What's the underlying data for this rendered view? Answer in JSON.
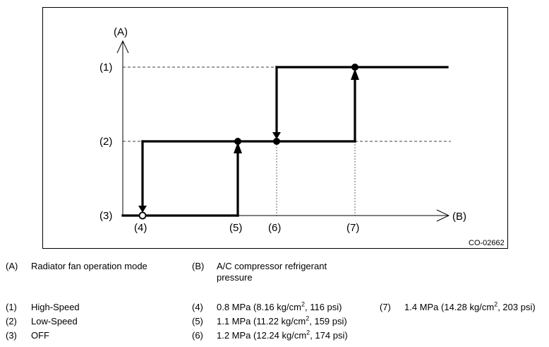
{
  "diagram": {
    "axis_y_label": "(A)",
    "axis_x_label": "(B)",
    "y_levels": [
      "(1)",
      "(2)",
      "(3)"
    ],
    "x_points": [
      "(4)",
      "(5)",
      "(6)",
      "(7)"
    ],
    "figure_code": "CO-02662"
  },
  "legend": {
    "A": {
      "key": "(A)",
      "text": "Radiator fan operation mode"
    },
    "B": {
      "key": "(B)",
      "text": "A/C compressor refrigerant pressure"
    },
    "items": [
      {
        "key": "(1)",
        "text": "High-Speed"
      },
      {
        "key": "(2)",
        "text": "Low-Speed"
      },
      {
        "key": "(3)",
        "text": "OFF"
      },
      {
        "key": "(4)",
        "text_before": "0.8 MPa (8.16 kg/cm",
        "sup": "2",
        "text_after": ", 116 psi)"
      },
      {
        "key": "(5)",
        "text_before": "1.1 MPa (11.22 kg/cm",
        "sup": "2",
        "text_after": ", 159 psi)"
      },
      {
        "key": "(6)",
        "text_before": "1.2 MPa (12.24 kg/cm",
        "sup": "2",
        "text_after": ", 174 psi)"
      },
      {
        "key": "(7)",
        "text_before": "1.4 MPa (14.28 kg/cm",
        "sup": "2",
        "text_after": ", 203 psi)"
      }
    ]
  }
}
